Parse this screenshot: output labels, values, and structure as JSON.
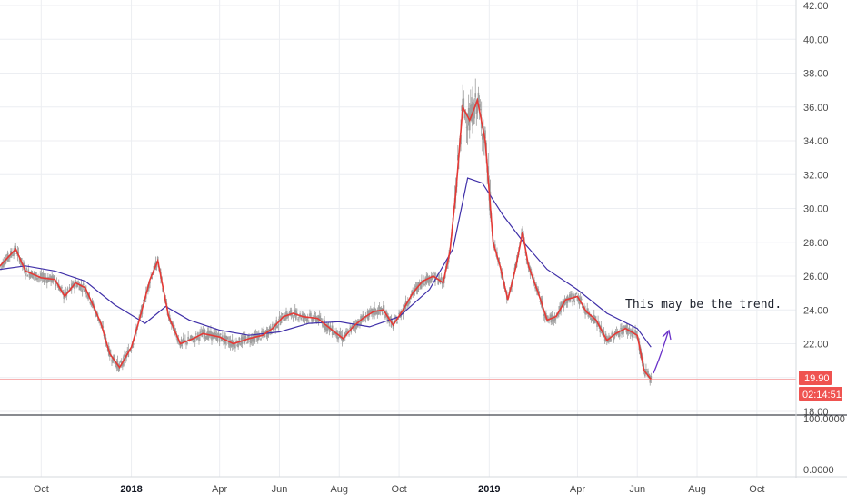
{
  "chart_data": {
    "type": "candlestick",
    "title": "",
    "y_ticks": [
      "42.00",
      "40.00",
      "38.00",
      "36.00",
      "34.00",
      "32.00",
      "30.00",
      "28.00",
      "26.00",
      "24.00",
      "22.00",
      "20.00",
      "18.00"
    ],
    "ylim": [
      18.0,
      42.0
    ],
    "x_ticks": [
      {
        "label": "Oct",
        "date": "2017-10-01",
        "bold": false
      },
      {
        "label": "2018",
        "date": "2018-01-01",
        "bold": true
      },
      {
        "label": "Apr",
        "date": "2018-04-01",
        "bold": false
      },
      {
        "label": "Jun",
        "date": "2018-06-01",
        "bold": false
      },
      {
        "label": "Aug",
        "date": "2018-08-01",
        "bold": false
      },
      {
        "label": "Oct",
        "date": "2018-10-01",
        "bold": false
      },
      {
        "label": "2019",
        "date": "2019-01-01",
        "bold": true
      },
      {
        "label": "Apr",
        "date": "2019-04-01",
        "bold": false
      },
      {
        "label": "Jun",
        "date": "2019-06-01",
        "bold": false
      },
      {
        "label": "Aug",
        "date": "2019-08-01",
        "bold": false
      },
      {
        "label": "Oct",
        "date": "2019-10-01",
        "bold": false
      }
    ],
    "xlim": [
      "2017-08-20",
      "2019-11-10"
    ],
    "last_price": "19.90",
    "last_price_value": 19.9,
    "countdown": "02:14:51",
    "price_series_points": [
      [
        "2017-08-20",
        26.6
      ],
      [
        "2017-09-05",
        27.6
      ],
      [
        "2017-09-15",
        26.3
      ],
      [
        "2017-10-01",
        25.9
      ],
      [
        "2017-10-15",
        25.8
      ],
      [
        "2017-10-25",
        24.8
      ],
      [
        "2017-11-05",
        25.6
      ],
      [
        "2017-11-15",
        25.3
      ],
      [
        "2017-12-01",
        23.2
      ],
      [
        "2017-12-10",
        21.4
      ],
      [
        "2017-12-20",
        20.6
      ],
      [
        "2018-01-01",
        21.8
      ],
      [
        "2018-01-10",
        23.6
      ],
      [
        "2018-01-20",
        25.8
      ],
      [
        "2018-01-28",
        26.9
      ],
      [
        "2018-02-08",
        23.6
      ],
      [
        "2018-02-20",
        22.0
      ],
      [
        "2018-03-05",
        22.3
      ],
      [
        "2018-03-15",
        22.6
      ],
      [
        "2018-04-01",
        22.4
      ],
      [
        "2018-04-15",
        22.0
      ],
      [
        "2018-05-01",
        22.3
      ],
      [
        "2018-05-15",
        22.5
      ],
      [
        "2018-05-25",
        22.9
      ],
      [
        "2018-06-05",
        23.6
      ],
      [
        "2018-06-15",
        23.8
      ],
      [
        "2018-06-25",
        23.6
      ],
      [
        "2018-07-10",
        23.5
      ],
      [
        "2018-07-25",
        22.8
      ],
      [
        "2018-08-05",
        22.3
      ],
      [
        "2018-08-15",
        23.0
      ],
      [
        "2018-08-25",
        23.5
      ],
      [
        "2018-09-05",
        23.9
      ],
      [
        "2018-09-15",
        24.0
      ],
      [
        "2018-09-25",
        23.1
      ],
      [
        "2018-10-05",
        24.0
      ],
      [
        "2018-10-15",
        25.0
      ],
      [
        "2018-10-25",
        25.7
      ],
      [
        "2018-11-05",
        26.0
      ],
      [
        "2018-11-15",
        25.6
      ],
      [
        "2018-11-22",
        27.5
      ],
      [
        "2018-11-28",
        31.0
      ],
      [
        "2018-12-05",
        36.0
      ],
      [
        "2018-12-12",
        35.2
      ],
      [
        "2018-12-20",
        36.4
      ],
      [
        "2018-12-28",
        34.0
      ],
      [
        "2019-01-05",
        28.0
      ],
      [
        "2019-01-12",
        26.6
      ],
      [
        "2019-01-20",
        24.6
      ],
      [
        "2019-01-28",
        26.5
      ],
      [
        "2019-02-04",
        28.6
      ],
      [
        "2019-02-10",
        26.6
      ],
      [
        "2019-02-20",
        25.0
      ],
      [
        "2019-03-01",
        23.4
      ],
      [
        "2019-03-10",
        23.6
      ],
      [
        "2019-03-20",
        24.6
      ],
      [
        "2019-04-01",
        24.8
      ],
      [
        "2019-04-10",
        23.9
      ],
      [
        "2019-04-20",
        23.4
      ],
      [
        "2019-05-01",
        22.2
      ],
      [
        "2019-05-10",
        22.6
      ],
      [
        "2019-05-20",
        22.9
      ],
      [
        "2019-06-01",
        22.5
      ],
      [
        "2019-06-08",
        20.4
      ],
      [
        "2019-06-15",
        19.9
      ]
    ],
    "moving_average_points": [
      [
        "2017-08-20",
        26.4
      ],
      [
        "2017-09-15",
        26.6
      ],
      [
        "2017-10-15",
        26.3
      ],
      [
        "2017-11-15",
        25.7
      ],
      [
        "2017-12-15",
        24.3
      ],
      [
        "2018-01-15",
        23.2
      ],
      [
        "2018-02-05",
        24.2
      ],
      [
        "2018-03-01",
        23.4
      ],
      [
        "2018-04-01",
        22.8
      ],
      [
        "2018-05-01",
        22.5
      ],
      [
        "2018-06-01",
        22.7
      ],
      [
        "2018-07-01",
        23.2
      ],
      [
        "2018-08-01",
        23.3
      ],
      [
        "2018-09-01",
        23.0
      ],
      [
        "2018-10-01",
        23.6
      ],
      [
        "2018-11-01",
        25.2
      ],
      [
        "2018-11-25",
        27.6
      ],
      [
        "2018-12-10",
        31.8
      ],
      [
        "2018-12-25",
        31.5
      ],
      [
        "2019-01-15",
        29.6
      ],
      [
        "2019-02-05",
        28.0
      ],
      [
        "2019-03-01",
        26.4
      ],
      [
        "2019-04-01",
        25.2
      ],
      [
        "2019-05-01",
        23.8
      ],
      [
        "2019-06-01",
        22.9
      ],
      [
        "2019-06-15",
        21.8
      ]
    ],
    "annotation": {
      "text": "This may be the trend."
    },
    "indicator_pane": {
      "y_ticks": [
        "100.0000",
        "0.0000"
      ]
    },
    "colors": {
      "price_line": "#e53935",
      "candles": "#9e9e9e",
      "moving_average": "#3f2fa8",
      "last_price_line": "#f7a4a4",
      "badge": "#ef5350",
      "arrow": "#6a32c9",
      "grid": "#eceef2",
      "separator": "#131722"
    }
  }
}
